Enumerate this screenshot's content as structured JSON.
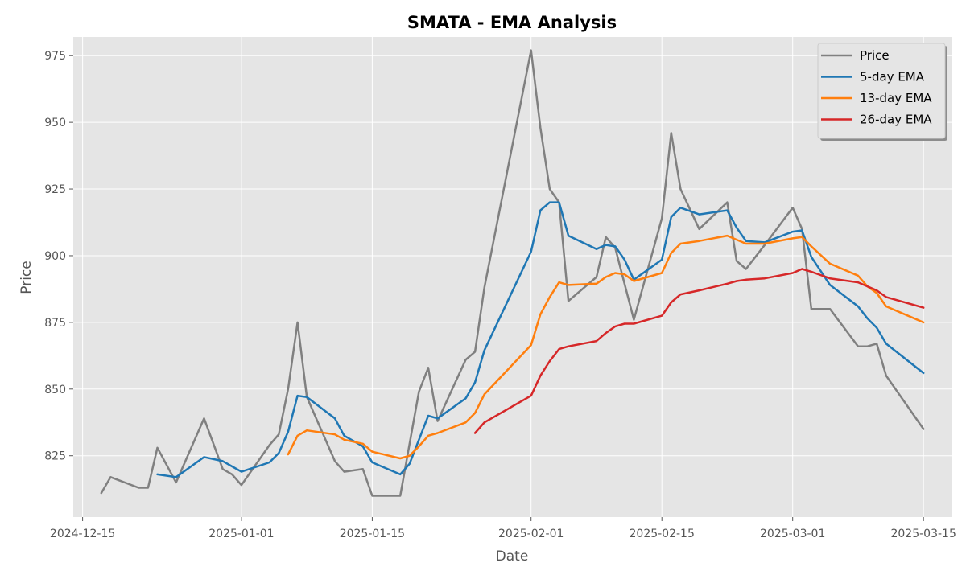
{
  "chart_data": {
    "type": "line",
    "title": "SMATA - EMA Analysis",
    "xlabel": "Date",
    "ylabel": "Price",
    "xlim": [
      "2024-12-14",
      "2025-03-18"
    ],
    "ylim": [
      802,
      982
    ],
    "x_ticks": [
      "2024-12-15",
      "2025-01-01",
      "2025-01-15",
      "2025-02-01",
      "2025-02-15",
      "2025-03-01",
      "2025-03-15"
    ],
    "y_ticks": [
      825,
      850,
      875,
      900,
      925,
      950,
      975
    ],
    "grid": true,
    "legend_position": "top-right",
    "series": [
      {
        "name": "Price",
        "color": "#808080",
        "points": [
          [
            "2024-12-17",
            811
          ],
          [
            "2024-12-18",
            817
          ],
          [
            "2024-12-21",
            813
          ],
          [
            "2024-12-22",
            813
          ],
          [
            "2024-12-23",
            828
          ],
          [
            "2024-12-25",
            815
          ],
          [
            "2024-12-28",
            839
          ],
          [
            "2024-12-30",
            820
          ],
          [
            "2024-12-31",
            818
          ],
          [
            "2025-01-01",
            814
          ],
          [
            "2025-01-04",
            829
          ],
          [
            "2025-01-05",
            833
          ],
          [
            "2025-01-06",
            850
          ],
          [
            "2025-01-07",
            875
          ],
          [
            "2025-01-08",
            847
          ],
          [
            "2025-01-11",
            823
          ],
          [
            "2025-01-12",
            819
          ],
          [
            "2025-01-14",
            820
          ],
          [
            "2025-01-15",
            810
          ],
          [
            "2025-01-18",
            810
          ],
          [
            "2025-01-20",
            849
          ],
          [
            "2025-01-21",
            858
          ],
          [
            "2025-01-22",
            838
          ],
          [
            "2025-01-25",
            861
          ],
          [
            "2025-01-26",
            864
          ],
          [
            "2025-01-27",
            888
          ],
          [
            "2025-02-01",
            977
          ],
          [
            "2025-02-02",
            948
          ],
          [
            "2025-02-03",
            925
          ],
          [
            "2025-02-04",
            920
          ],
          [
            "2025-02-05",
            883
          ],
          [
            "2025-02-08",
            892
          ],
          [
            "2025-02-09",
            907
          ],
          [
            "2025-02-10",
            903
          ],
          [
            "2025-02-12",
            876
          ],
          [
            "2025-02-15",
            914
          ],
          [
            "2025-02-16",
            946
          ],
          [
            "2025-02-17",
            925
          ],
          [
            "2025-02-19",
            910
          ],
          [
            "2025-02-22",
            920
          ],
          [
            "2025-02-23",
            898
          ],
          [
            "2025-02-24",
            895
          ],
          [
            "2025-02-26",
            904
          ],
          [
            "2025-03-01",
            918
          ],
          [
            "2025-03-02",
            910
          ],
          [
            "2025-03-03",
            880
          ],
          [
            "2025-03-05",
            880
          ],
          [
            "2025-03-08",
            866
          ],
          [
            "2025-03-09",
            866
          ],
          [
            "2025-03-10",
            867
          ],
          [
            "2025-03-11",
            855
          ],
          [
            "2025-03-15",
            835
          ]
        ]
      },
      {
        "name": "5-day EMA",
        "color": "#1f77b4",
        "points": [
          [
            "2024-12-23",
            818
          ],
          [
            "2024-12-25",
            817
          ],
          [
            "2024-12-28",
            824.5
          ],
          [
            "2024-12-30",
            823
          ],
          [
            "2024-12-31",
            821
          ],
          [
            "2025-01-01",
            819
          ],
          [
            "2025-01-04",
            822.5
          ],
          [
            "2025-01-05",
            826
          ],
          [
            "2025-01-06",
            834
          ],
          [
            "2025-01-07",
            847.5
          ],
          [
            "2025-01-08",
            847
          ],
          [
            "2025-01-11",
            839
          ],
          [
            "2025-01-12",
            832.5
          ],
          [
            "2025-01-14",
            828.5
          ],
          [
            "2025-01-15",
            822.5
          ],
          [
            "2025-01-18",
            818
          ],
          [
            "2025-01-19",
            822
          ],
          [
            "2025-01-20",
            831
          ],
          [
            "2025-01-21",
            840
          ],
          [
            "2025-01-22",
            839
          ],
          [
            "2025-01-25",
            846.5
          ],
          [
            "2025-01-26",
            852.5
          ],
          [
            "2025-01-27",
            864.5
          ],
          [
            "2025-02-01",
            901.5
          ],
          [
            "2025-02-02",
            917
          ],
          [
            "2025-02-03",
            920
          ],
          [
            "2025-02-04",
            920
          ],
          [
            "2025-02-05",
            907.5
          ],
          [
            "2025-02-08",
            902.5
          ],
          [
            "2025-02-09",
            904
          ],
          [
            "2025-02-10",
            903.5
          ],
          [
            "2025-02-11",
            898.5
          ],
          [
            "2025-02-12",
            891
          ],
          [
            "2025-02-15",
            898.5
          ],
          [
            "2025-02-16",
            914.5
          ],
          [
            "2025-02-17",
            918
          ],
          [
            "2025-02-19",
            915.5
          ],
          [
            "2025-02-22",
            917
          ],
          [
            "2025-02-23",
            910.5
          ],
          [
            "2025-02-24",
            905.5
          ],
          [
            "2025-02-26",
            905
          ],
          [
            "2025-03-01",
            909
          ],
          [
            "2025-03-02",
            909.5
          ],
          [
            "2025-03-03",
            899.5
          ],
          [
            "2025-03-05",
            889
          ],
          [
            "2025-03-08",
            881
          ],
          [
            "2025-03-09",
            876.5
          ],
          [
            "2025-03-10",
            873
          ],
          [
            "2025-03-11",
            867
          ],
          [
            "2025-03-15",
            856
          ]
        ]
      },
      {
        "name": "13-day EMA",
        "color": "#ff7f0e",
        "points": [
          [
            "2025-01-06",
            825.5
          ],
          [
            "2025-01-07",
            832.5
          ],
          [
            "2025-01-08",
            834.5
          ],
          [
            "2025-01-11",
            833
          ],
          [
            "2025-01-12",
            831
          ],
          [
            "2025-01-14",
            829.5
          ],
          [
            "2025-01-15",
            826.5
          ],
          [
            "2025-01-18",
            824
          ],
          [
            "2025-01-19",
            825
          ],
          [
            "2025-01-20",
            828.5
          ],
          [
            "2025-01-21",
            832.5
          ],
          [
            "2025-01-22",
            833.5
          ],
          [
            "2025-01-25",
            837.5
          ],
          [
            "2025-01-26",
            841
          ],
          [
            "2025-01-27",
            848
          ],
          [
            "2025-02-01",
            866.5
          ],
          [
            "2025-02-02",
            878
          ],
          [
            "2025-02-03",
            884.5
          ],
          [
            "2025-02-04",
            890
          ],
          [
            "2025-02-05",
            889
          ],
          [
            "2025-02-08",
            889.5
          ],
          [
            "2025-02-09",
            892
          ],
          [
            "2025-02-10",
            893.5
          ],
          [
            "2025-02-11",
            893
          ],
          [
            "2025-02-12",
            890.5
          ],
          [
            "2025-02-15",
            893.5
          ],
          [
            "2025-02-16",
            901
          ],
          [
            "2025-02-17",
            904.5
          ],
          [
            "2025-02-19",
            905.5
          ],
          [
            "2025-02-22",
            907.5
          ],
          [
            "2025-02-23",
            906
          ],
          [
            "2025-02-24",
            904.5
          ],
          [
            "2025-02-26",
            904.5
          ],
          [
            "2025-03-01",
            906.5
          ],
          [
            "2025-03-02",
            907
          ],
          [
            "2025-03-03",
            903.5
          ],
          [
            "2025-03-05",
            897
          ],
          [
            "2025-03-08",
            892.5
          ],
          [
            "2025-03-09",
            888.5
          ],
          [
            "2025-03-10",
            886
          ],
          [
            "2025-03-11",
            881
          ],
          [
            "2025-03-15",
            875
          ]
        ]
      },
      {
        "name": "26-day EMA",
        "color": "#d62728",
        "points": [
          [
            "2025-01-26",
            833.5
          ],
          [
            "2025-01-27",
            837.5
          ],
          [
            "2025-02-01",
            847.5
          ],
          [
            "2025-02-02",
            855
          ],
          [
            "2025-02-03",
            860.5
          ],
          [
            "2025-02-04",
            865
          ],
          [
            "2025-02-05",
            866
          ],
          [
            "2025-02-08",
            868
          ],
          [
            "2025-02-09",
            871
          ],
          [
            "2025-02-10",
            873.5
          ],
          [
            "2025-02-11",
            874.5
          ],
          [
            "2025-02-12",
            874.5
          ],
          [
            "2025-02-15",
            877.5
          ],
          [
            "2025-02-16",
            882.5
          ],
          [
            "2025-02-17",
            885.5
          ],
          [
            "2025-02-19",
            887
          ],
          [
            "2025-02-22",
            889.5
          ],
          [
            "2025-02-23",
            890.5
          ],
          [
            "2025-02-24",
            891
          ],
          [
            "2025-02-26",
            891.5
          ],
          [
            "2025-03-01",
            893.5
          ],
          [
            "2025-03-02",
            895
          ],
          [
            "2025-03-03",
            894
          ],
          [
            "2025-03-05",
            891.5
          ],
          [
            "2025-03-08",
            890
          ],
          [
            "2025-03-09",
            888.5
          ],
          [
            "2025-03-10",
            887
          ],
          [
            "2025-03-11",
            884.5
          ],
          [
            "2025-03-15",
            880.5
          ]
        ]
      }
    ]
  }
}
